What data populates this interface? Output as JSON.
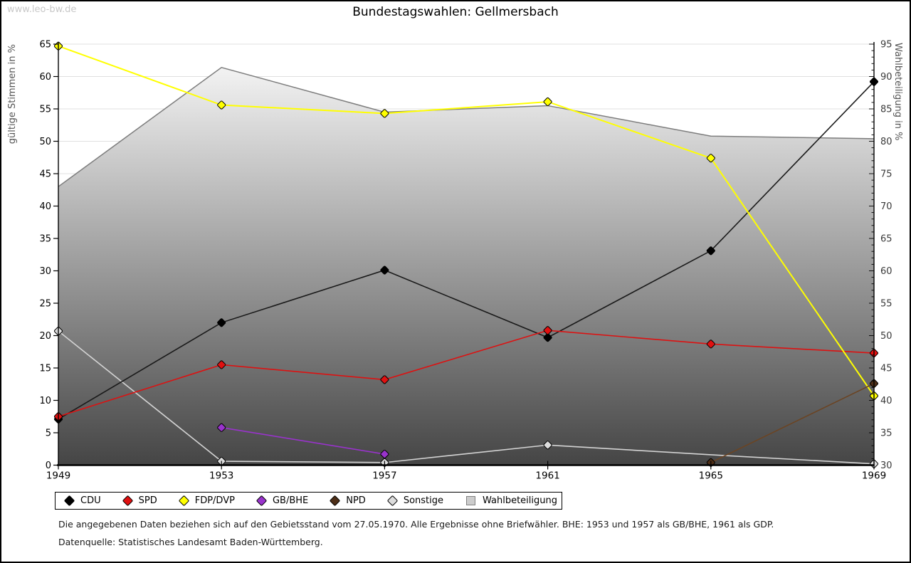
{
  "watermark": "www.leo-bw.de",
  "title": "Bundestagswahlen: Gellmersbach",
  "left_axis": {
    "label": "gültige Stimmen in %",
    "min": 0,
    "max": 65,
    "step": 5
  },
  "right_axis": {
    "label": "Wahlbeteiligung in %",
    "min": 30,
    "max": 95,
    "step": 5
  },
  "footnotes": {
    "line1": "Die angegebenen Daten beziehen sich auf den Gebietsstand vom 27.05.1970. Alle Ergebnisse ohne Briefwähler. BHE: 1953 und 1957 als GB/BHE, 1961 als GDP.",
    "line2": "Datenquelle: Statistisches Landesamt Baden-Württemberg."
  },
  "chart_data": {
    "type": "line",
    "title": "Bundestagswahlen: Gellmersbach",
    "categories": [
      "1949",
      "1953",
      "1957",
      "1961",
      "1965",
      "1969"
    ],
    "ylabel_left": "gültige Stimmen in %",
    "ylabel_right": "Wahlbeteiligung in %",
    "ylim_left": [
      0,
      65
    ],
    "ylim_right": [
      30,
      95
    ],
    "grid": true,
    "legend_position": "bottom",
    "series": [
      {
        "name": "CDU",
        "axis": "left",
        "color": "#1a1a1a",
        "marker": "#000000",
        "values": [
          7.1,
          22.0,
          30.1,
          19.7,
          33.1,
          59.2
        ]
      },
      {
        "name": "SPD",
        "axis": "left",
        "color": "#dd1111",
        "marker": "#e01010",
        "values": [
          7.5,
          15.5,
          13.2,
          20.8,
          18.7,
          17.3
        ]
      },
      {
        "name": "FDP/DVP",
        "axis": "left",
        "color": "#ffff00",
        "marker": "#ffff00",
        "values": [
          64.7,
          55.6,
          54.3,
          56.1,
          47.4,
          10.7
        ]
      },
      {
        "name": "GB/BHE",
        "axis": "left",
        "color": "#9933cc",
        "marker": "#9933cc",
        "values": [
          null,
          5.8,
          1.7,
          null,
          null,
          null
        ]
      },
      {
        "name": "NPD",
        "axis": "left",
        "color": "#6b4423",
        "marker": "#4d2e17",
        "values": [
          null,
          null,
          null,
          null,
          0.4,
          12.6
        ]
      },
      {
        "name": "Sonstige",
        "axis": "left",
        "color": "#d4d4d4",
        "marker": "#dcdcdc",
        "values": [
          20.7,
          0.6,
          0.4,
          3.1,
          1.6,
          0.2
        ],
        "no_marker": [
          4
        ]
      }
    ],
    "participation": {
      "name": "Wahlbeteiligung",
      "axis": "right",
      "values": [
        73.0,
        91.4,
        84.5,
        85.5,
        80.8,
        80.4
      ],
      "fill_top": "#fdfdfd",
      "fill_bottom": "#454545",
      "border": "#7d7d7d",
      "legend_fill": "#cccccc",
      "legend_border": "#808080"
    }
  }
}
